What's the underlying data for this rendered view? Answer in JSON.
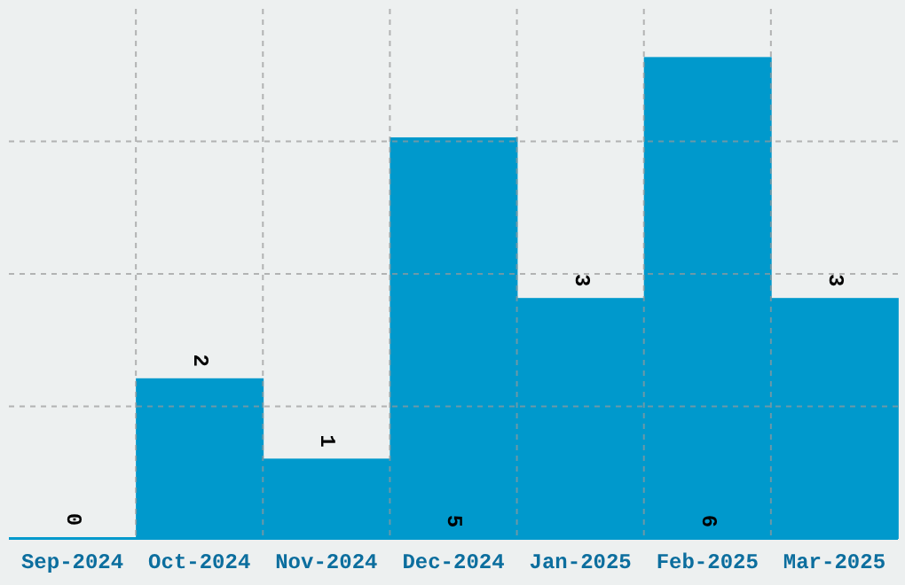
{
  "chart_data": {
    "type": "bar",
    "categories": [
      "Sep-2024",
      "Oct-2024",
      "Nov-2024",
      "Dec-2024",
      "Jan-2025",
      "Feb-2025",
      "Mar-2025"
    ],
    "values": [
      0,
      2,
      1,
      5,
      3,
      6,
      3
    ],
    "color": "#0099cc",
    "ylim": [
      0,
      6.6
    ],
    "grid": true,
    "data_labels": true,
    "tick_labels": "x"
  }
}
